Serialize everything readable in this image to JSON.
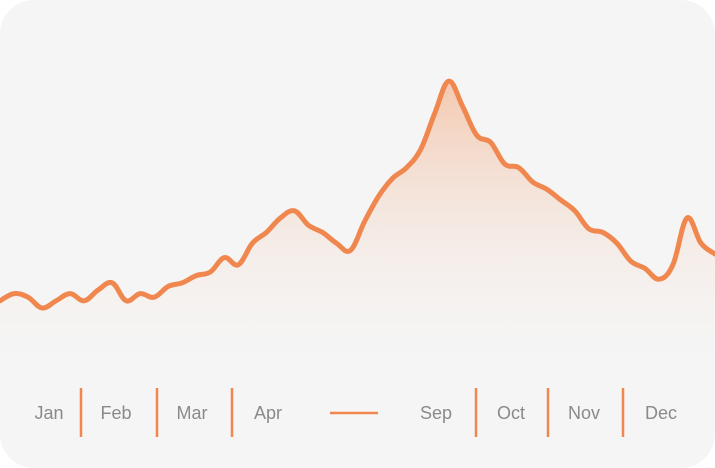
{
  "colors": {
    "accent": "#f0874f",
    "card_background": "#f5f5f5",
    "label_text": "#8a8a8a",
    "fill_top": "#f3c1a4"
  },
  "chart_data": {
    "type": "area",
    "title": "",
    "xlabel": "",
    "ylabel": "",
    "ylim": [
      0,
      100
    ],
    "grid": false,
    "x_axis_labels": [
      "Jan",
      "Feb",
      "Mar",
      "Apr",
      "Sep",
      "Oct",
      "Nov",
      "Dec"
    ],
    "x_axis_gap_after": "Apr",
    "series": [
      {
        "values": [
          22,
          24,
          23,
          20,
          22,
          24,
          22,
          25,
          27,
          22,
          24,
          23,
          26,
          27,
          29,
          30,
          34,
          32,
          38,
          41,
          45,
          47,
          43,
          41,
          38,
          36,
          44,
          51,
          56,
          59,
          64,
          74,
          83,
          76,
          68,
          66,
          60,
          59,
          55,
          53,
          50,
          47,
          42,
          41,
          38,
          33,
          31,
          28,
          32,
          45,
          38,
          35
        ]
      }
    ]
  }
}
